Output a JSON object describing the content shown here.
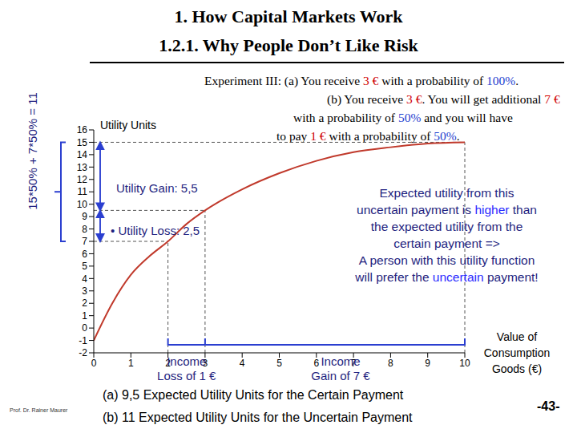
{
  "chart_data": {
    "type": "line",
    "title": "1. How Capital Markets Work",
    "subtitle": "1.2.1. Why People Don’t Like Risk",
    "experiment": [
      [
        {
          "text": "Experiment III: (a) You receive "
        },
        {
          "text": "3 €",
          "color": "#d00000"
        },
        {
          "text": " with a probability of "
        },
        {
          "text": "100%",
          "color": "#1f3fd0"
        },
        {
          "text": "."
        }
      ],
      [
        {
          "text": "(b) You receive "
        },
        {
          "text": "3 €",
          "color": "#d00000"
        },
        {
          "text": ". You will get additional "
        },
        {
          "text": "7 €",
          "color": "#d00000"
        }
      ],
      [
        {
          "text": "with a probability of "
        },
        {
          "text": "50%",
          "color": "#1f3fd0"
        },
        {
          "text": " and you will have"
        }
      ],
      [
        {
          "text": "to pay "
        },
        {
          "text": "1 €",
          "color": "#d00000"
        },
        {
          "text": " with a probability of "
        },
        {
          "text": "50%",
          "color": "#1f3fd0"
        },
        {
          "text": "."
        }
      ]
    ],
    "y_label": "Utility Units",
    "x_label": [
      "Value of",
      "Consumption",
      "Goods (€)"
    ],
    "x": [
      0,
      0.5,
      1,
      1.5,
      2,
      2.5,
      3,
      4,
      5,
      6,
      7,
      8,
      9,
      10
    ],
    "values": [
      -1,
      2,
      4.3,
      5.8,
      7,
      8.4,
      9.5,
      11.2,
      12.5,
      13.5,
      14.2,
      14.6,
      14.9,
      15
    ],
    "color": "#c0392b",
    "xlim": [
      0,
      10
    ],
    "ylim": [
      -2,
      16
    ],
    "xticks": [
      0,
      1,
      2,
      3,
      4,
      5,
      6,
      7,
      8,
      9,
      10
    ],
    "yticks": [
      -2,
      -1,
      0,
      1,
      2,
      3,
      4,
      5,
      6,
      7,
      8,
      9,
      10,
      11,
      12,
      13,
      14,
      15,
      16
    ],
    "reference_points": [
      {
        "x": 2,
        "y": 7
      },
      {
        "x": 3,
        "y": 9.5
      },
      {
        "x": 10,
        "y": 15
      }
    ],
    "annotations": {
      "gain": "Utility Gain: 5,5",
      "loss": "• Utility Loss: 2,5",
      "sum": "15*50% + 7*50% = 11",
      "income_loss": [
        "Income",
        "Loss of 1 €"
      ],
      "income_gain": [
        "Income",
        "Gain of 7 €"
      ],
      "note": [
        [
          {
            "text": "Expected utility from this"
          }
        ],
        [
          {
            "text": "uncertain payment is "
          },
          {
            "text": "higher",
            "color": "#2b2bff"
          },
          {
            "text": " than"
          }
        ],
        [
          {
            "text": "the expected utility from the"
          }
        ],
        [
          {
            "text": "certain payment =>"
          }
        ],
        [
          {
            "text": "A person with this utility function"
          }
        ],
        [
          {
            "text": "will prefer the "
          },
          {
            "text": "uncertain",
            "color": "#2b2bff"
          },
          {
            "text": " payment!"
          }
        ]
      ],
      "result_a": "(a) 9,5 Expected Utility Units for the Certain Payment",
      "result_b": "(b) 11 Expected Utility Units for the Uncertain Payment",
      "author": "Prof. Dr. Rainer Maurer",
      "page": "-43-"
    }
  }
}
